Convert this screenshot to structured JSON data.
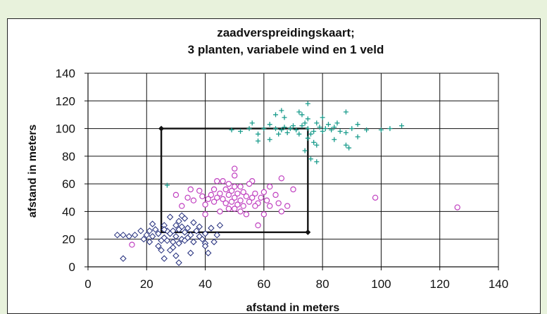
{
  "chart_data": {
    "type": "scatter",
    "title_line1": "zaadverspreidingskaart;",
    "title_line2": "3 planten, variabele wind en 1 veld",
    "xlabel": "afstand in meters",
    "ylabel": "afstand in meters",
    "xlim": [
      0,
      140
    ],
    "ylim": [
      0,
      140
    ],
    "xticks": [
      "0",
      "20",
      "40",
      "60",
      "80",
      "100",
      "120",
      "140"
    ],
    "yticks": [
      "0",
      "20",
      "40",
      "60",
      "80",
      "100",
      "120",
      "140"
    ],
    "grid": true,
    "legend": "none",
    "field_rectangle": {
      "x": [
        25,
        75
      ],
      "y": [
        25,
        100
      ],
      "color": "#111111"
    },
    "series": [
      {
        "marker": "diamond",
        "color": "#1f2a7a",
        "center": [
          30,
          22
        ],
        "points": [
          [
            30,
            22
          ],
          [
            28,
            24
          ],
          [
            32,
            20
          ],
          [
            26,
            21
          ],
          [
            33,
            25
          ],
          [
            29,
            18
          ],
          [
            31,
            27
          ],
          [
            27,
            26
          ],
          [
            34,
            21
          ],
          [
            25,
            19
          ],
          [
            35,
            23
          ],
          [
            24,
            24
          ],
          [
            30,
            30
          ],
          [
            29,
            14
          ],
          [
            36,
            18
          ],
          [
            23,
            27
          ],
          [
            37,
            26
          ],
          [
            22,
            22
          ],
          [
            31,
            33
          ],
          [
            28,
            12
          ],
          [
            38,
            22
          ],
          [
            21,
            18
          ],
          [
            33,
            35
          ],
          [
            26,
            30
          ],
          [
            40,
            24
          ],
          [
            20,
            23
          ],
          [
            32,
            37
          ],
          [
            30,
            8
          ],
          [
            42,
            28
          ],
          [
            18,
            26
          ],
          [
            40,
            17
          ],
          [
            25,
            12
          ],
          [
            36,
            32
          ],
          [
            22,
            31
          ],
          [
            44,
            23
          ],
          [
            16,
            23
          ],
          [
            45,
            30
          ],
          [
            14,
            22
          ],
          [
            12,
            23
          ],
          [
            10,
            23
          ],
          [
            12,
            6
          ],
          [
            31,
            3
          ],
          [
            41,
            10
          ],
          [
            40,
            15
          ],
          [
            28,
            36
          ],
          [
            26,
            6
          ],
          [
            35,
            10
          ],
          [
            38,
            29
          ],
          [
            24,
            15
          ],
          [
            34,
            28
          ],
          [
            29,
            26
          ],
          [
            31,
            17
          ],
          [
            27,
            19
          ],
          [
            33,
            19
          ],
          [
            26,
            27
          ],
          [
            32,
            29
          ],
          [
            39,
            20
          ],
          [
            21,
            26
          ],
          [
            43,
            18
          ],
          [
            19,
            20
          ]
        ]
      },
      {
        "marker": "circle",
        "color": "#c040c0",
        "center": [
          50,
          50
        ],
        "points": [
          [
            50,
            50
          ],
          [
            48,
            52
          ],
          [
            52,
            48
          ],
          [
            46,
            49
          ],
          [
            54,
            51
          ],
          [
            49,
            55
          ],
          [
            51,
            45
          ],
          [
            45,
            53
          ],
          [
            55,
            47
          ],
          [
            47,
            46
          ],
          [
            53,
            54
          ],
          [
            44,
            50
          ],
          [
            56,
            50
          ],
          [
            50,
            58
          ],
          [
            50,
            42
          ],
          [
            43,
            47
          ],
          [
            57,
            53
          ],
          [
            42,
            52
          ],
          [
            58,
            46
          ],
          [
            48,
            60
          ],
          [
            52,
            40
          ],
          [
            41,
            49
          ],
          [
            59,
            50
          ],
          [
            40,
            45
          ],
          [
            60,
            54
          ],
          [
            46,
            62
          ],
          [
            54,
            38
          ],
          [
            39,
            51
          ],
          [
            61,
            48
          ],
          [
            38,
            55
          ],
          [
            62,
            44
          ],
          [
            50,
            66
          ],
          [
            50,
            71
          ],
          [
            36,
            48
          ],
          [
            64,
            52
          ],
          [
            35,
            56
          ],
          [
            65,
            46
          ],
          [
            34,
            50
          ],
          [
            66,
            40
          ],
          [
            40,
            38
          ],
          [
            62,
            58
          ],
          [
            44,
            62
          ],
          [
            56,
            62
          ],
          [
            60,
            38
          ],
          [
            32,
            44
          ],
          [
            68,
            44
          ],
          [
            30,
            52
          ],
          [
            70,
            56
          ],
          [
            58,
            30
          ],
          [
            66,
            64
          ],
          [
            45,
            40
          ],
          [
            55,
            60
          ],
          [
            47,
            56
          ],
          [
            53,
            44
          ],
          [
            49,
            47
          ],
          [
            51,
            53
          ],
          [
            43,
            56
          ],
          [
            57,
            44
          ],
          [
            48,
            42
          ],
          [
            52,
            58
          ],
          [
            15,
            16
          ],
          [
            98,
            50
          ],
          [
            126,
            43
          ]
        ]
      },
      {
        "marker": "plus",
        "color": "#1a9c8c",
        "center": [
          75,
          100
        ],
        "points": [
          [
            75,
            100
          ],
          [
            73,
            102
          ],
          [
            77,
            98
          ],
          [
            71,
            99
          ],
          [
            79,
            101
          ],
          [
            74,
            104
          ],
          [
            76,
            96
          ],
          [
            70,
            102
          ],
          [
            80,
            98
          ],
          [
            72,
            96
          ],
          [
            78,
            104
          ],
          [
            69,
            100
          ],
          [
            81,
            100
          ],
          [
            75,
            107
          ],
          [
            75,
            93
          ],
          [
            68,
            97
          ],
          [
            82,
            103
          ],
          [
            67,
            101
          ],
          [
            83,
            99
          ],
          [
            73,
            110
          ],
          [
            77,
            90
          ],
          [
            66,
            99
          ],
          [
            84,
            101
          ],
          [
            65,
            96
          ],
          [
            85,
            104
          ],
          [
            72,
            112
          ],
          [
            78,
            88
          ],
          [
            64,
            100
          ],
          [
            86,
            98
          ],
          [
            62,
            103
          ],
          [
            88,
            97
          ],
          [
            60,
            100
          ],
          [
            90,
            100
          ],
          [
            58,
            96
          ],
          [
            92,
            103
          ],
          [
            75,
            118
          ],
          [
            74,
            84
          ],
          [
            55,
            100
          ],
          [
            95,
            99
          ],
          [
            52,
            98
          ],
          [
            88,
            112
          ],
          [
            88,
            88
          ],
          [
            62,
            92
          ],
          [
            67,
            108
          ],
          [
            84,
            92
          ],
          [
            80,
            108
          ],
          [
            56,
            104
          ],
          [
            92,
            94
          ],
          [
            58,
            91
          ],
          [
            64,
            110
          ],
          [
            89,
            86
          ],
          [
            100,
            99
          ],
          [
            103,
            100
          ],
          [
            107,
            102
          ],
          [
            27,
            59
          ],
          [
            49,
            99
          ],
          [
            76,
            78
          ],
          [
            78,
            76
          ],
          [
            66,
            113
          ]
        ]
      }
    ]
  }
}
